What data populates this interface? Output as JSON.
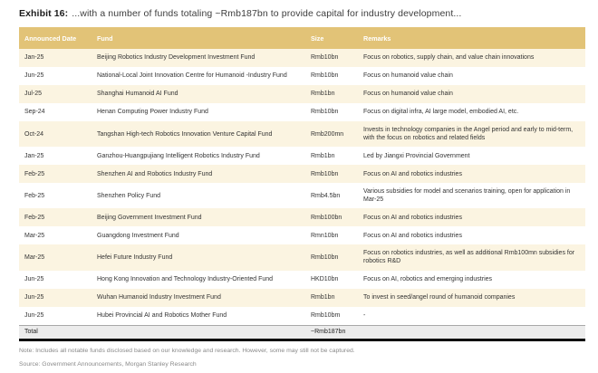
{
  "exhibit": {
    "label": "Exhibit 16:",
    "title": "...with a number of funds totaling ~Rmb187bn to provide capital for industry development..."
  },
  "table": {
    "columns": {
      "announced_date": "Announced Date",
      "fund": "Fund",
      "size": "Size",
      "remarks": "Remarks"
    },
    "rows": [
      {
        "date": "Jan-25",
        "fund": "Beijing Robotics Industry Development Investment Fund",
        "size": "Rmb10bn",
        "remarks": "Focus on robotics, supply chain, and value chain innovations"
      },
      {
        "date": "Jun-25",
        "fund": "National-Local Joint Innovation Centre for Humanoid -Industry Fund",
        "size": "Rmb10bn",
        "remarks": "Focus on humanoid value chain"
      },
      {
        "date": "Jul-25",
        "fund": "Shanghai Humanoid AI Fund",
        "size": "Rmb1bn",
        "remarks": "Focus on humanoid value chain"
      },
      {
        "date": "Sep-24",
        "fund": "Henan Computing Power Industry Fund",
        "size": "Rmb10bn",
        "remarks": "Focus on digital infra, AI large model, embodied AI, etc."
      },
      {
        "date": "Oct-24",
        "fund": "Tangshan High-tech Robotics Innovation Venture Capital Fund",
        "size": "Rmb200mn",
        "remarks": "Invests in technology companies in the Angel period and early to mid-term, with the focus on robotics and related fields"
      },
      {
        "date": "Jan-25",
        "fund": "Ganzhou-Huangpujiang Intelligent Robotics Industry Fund",
        "size": "Rmb1bn",
        "remarks": "Led by Jiangxi Provincial Government"
      },
      {
        "date": "Feb-25",
        "fund": "Shenzhen AI and Robotics Industry Fund",
        "size": "Rmb10bn",
        "remarks": "Focus on AI and robotics industries"
      },
      {
        "date": "Feb-25",
        "fund": "Shenzhen Policy Fund",
        "size": "Rmb4.5bn",
        "remarks": "Various subsidies for model and scenarios training, open for application in Mar-25"
      },
      {
        "date": "Feb-25",
        "fund": "Beijing Government Investment Fund",
        "size": "Rmb100bn",
        "remarks": "Focus on AI and robotics industries"
      },
      {
        "date": "Mar-25",
        "fund": "Guangdong Investment Fund",
        "size": "Rmn10bn",
        "remarks": "Focus on AI and robotics industries"
      },
      {
        "date": "Mar-25",
        "fund": "Hefei Future Industry Fund",
        "size": "Rmb10bn",
        "remarks": "Focus on robotics industries, as well as additional Rmb100mn subsidies for robotics R&D"
      },
      {
        "date": "Jun-25",
        "fund": "Hong Kong Innovation and Technology Industry-Oriented Fund",
        "size": "HKD10bn",
        "remarks": "Focus on AI, robotics and emerging industries"
      },
      {
        "date": "Jun-25",
        "fund": "Wuhan Humanoid Industry Investment Fund",
        "size": "Rmb1bn",
        "remarks": "To invest in seed/angel round of humanoid companies"
      },
      {
        "date": "Jun-25",
        "fund": "Hubei Provincial AI and Robotics Mother Fund",
        "size": "Rmb10bm",
        "remarks": "-"
      }
    ],
    "total": {
      "label": "Total",
      "size": "~Rmb187bn"
    }
  },
  "footer": {
    "note": "Note: Includes all notable funds disclosed based on our knowledge and research. However, some may still not be captured.",
    "source": "Source: Government Announcements, Morgan Stanley Research"
  },
  "colors": {
    "header_bg": "#e2c377",
    "row_alt_bg": "#fbf4e1",
    "total_bg": "#ececec"
  }
}
